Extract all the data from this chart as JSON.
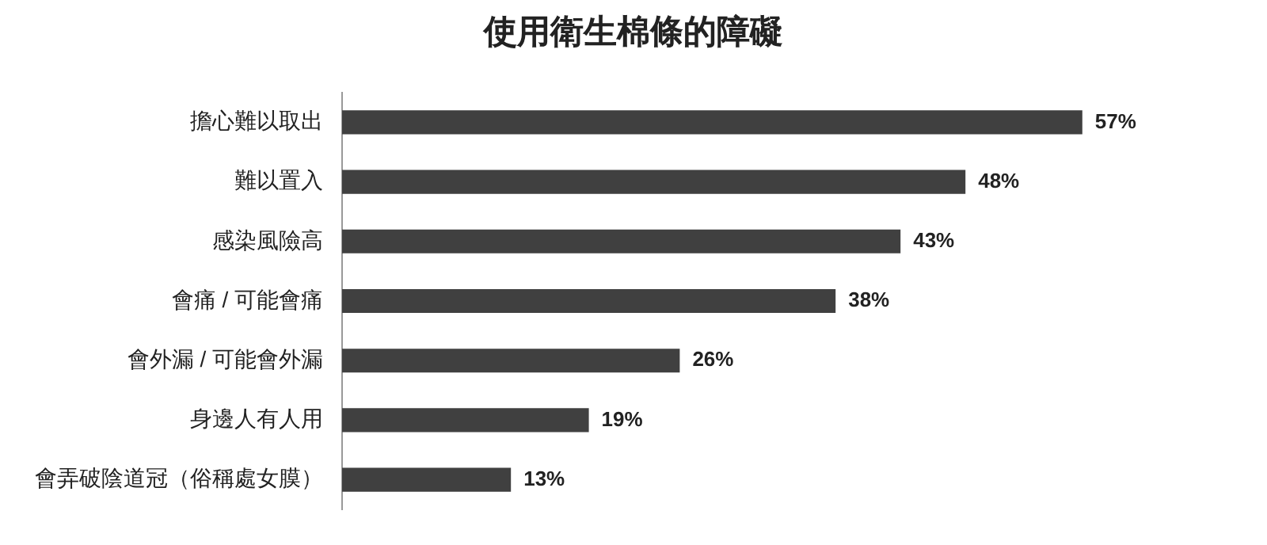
{
  "chart_data": {
    "type": "bar",
    "orientation": "horizontal",
    "title": "使用衛生棉條的障礙",
    "categories": [
      "擔心難以取出",
      "難以置入",
      "感染風險高",
      "會痛 / 可能會痛",
      "會外漏 / 可能會外漏",
      "身邊人有人用",
      "會弄破陰道冠（俗稱處女膜）"
    ],
    "values": [
      57,
      48,
      43,
      38,
      26,
      19,
      13
    ],
    "value_labels": [
      "57%",
      "48%",
      "43%",
      "38%",
      "26%",
      "19%",
      "13%"
    ],
    "color": "#404040",
    "grid": false,
    "legend": false,
    "tick_labels": "y"
  }
}
